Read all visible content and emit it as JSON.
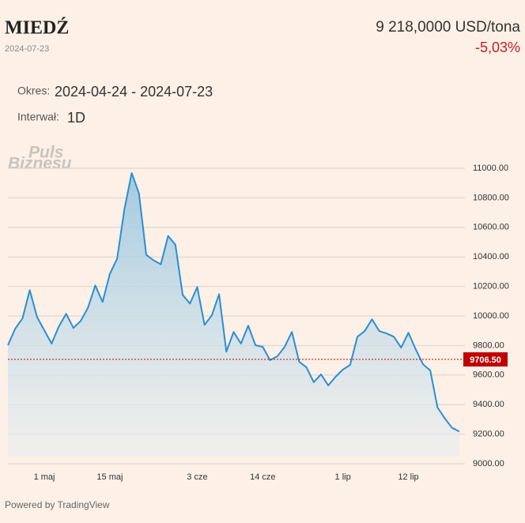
{
  "chart_data": {
    "type": "line",
    "title": "MIEDŹ",
    "subtitle": "2024-07-23",
    "price": "9 218,0000 USD/tona",
    "change": "-5,03%",
    "period_label": "Okres:",
    "period": "2024-04-24 - 2024-07-23",
    "interval_label": "Interwał:",
    "interval": "1D",
    "watermark": [
      "Puls",
      "Biznesu"
    ],
    "footer": "Powered by TradingView",
    "categories": [
      null,
      null,
      null,
      null,
      null,
      "1 maj",
      null,
      null,
      null,
      null,
      null,
      null,
      null,
      null,
      "15 maj",
      null,
      null,
      null,
      null,
      null,
      null,
      null,
      null,
      null,
      null,
      null,
      "3 cze",
      null,
      null,
      null,
      null,
      null,
      null,
      null,
      null,
      "14 cze",
      null,
      null,
      null,
      null,
      null,
      null,
      null,
      null,
      null,
      null,
      "1 lip",
      null,
      null,
      null,
      null,
      null,
      null,
      null,
      null,
      "12 lip",
      null,
      null,
      null,
      null,
      null,
      null,
      null
    ],
    "series": [
      {
        "color": "#2a8fd4",
        "values": [
          9802,
          9914,
          9983,
          10175,
          9994,
          9903,
          9813,
          9930,
          10015,
          9919,
          9967,
          10057,
          10207,
          10095,
          10286,
          10388,
          10723,
          10968,
          10830,
          10414,
          10377,
          10350,
          10542,
          10483,
          10143,
          10084,
          10196,
          9940,
          10004,
          10148,
          9759,
          9892,
          9813,
          9935,
          9802,
          9791,
          9701,
          9727,
          9791,
          9892,
          9690,
          9653,
          9552,
          9605,
          9530,
          9589,
          9637,
          9669,
          9860,
          9898,
          9978,
          9898,
          9882,
          9860,
          9786,
          9887,
          9775,
          9674,
          9631,
          9381,
          9307,
          9243,
          9218
        ]
      }
    ],
    "ylim": [
      9000,
      11000
    ],
    "yticks": [
      {
        "value": 9000,
        "label": "9000.00"
      },
      {
        "value": 9200,
        "label": "9200.00"
      },
      {
        "value": 9400,
        "label": "9400.00"
      },
      {
        "value": 9600,
        "label": "9600.00"
      },
      {
        "value": 9800,
        "label": "9800.00"
      },
      {
        "value": 10000,
        "label": "10000.00"
      },
      {
        "value": 10200,
        "label": "10200.00"
      },
      {
        "value": 10400,
        "label": "10400.00"
      },
      {
        "value": 10600,
        "label": "10600.00"
      },
      {
        "value": 10800,
        "label": "10800.00"
      },
      {
        "value": 11000,
        "label": "11000.00"
      }
    ],
    "reference_line": {
      "value": 9706.5,
      "label": "9706.50",
      "color": "#c00000"
    },
    "grid": true
  }
}
